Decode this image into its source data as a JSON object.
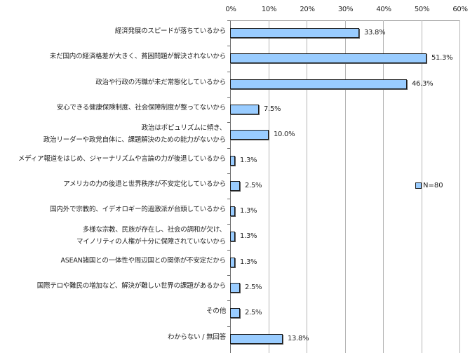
{
  "chart_data": {
    "type": "bar",
    "orientation": "horizontal",
    "title": "",
    "xlabel": "",
    "ylabel": "",
    "xlim": [
      0,
      60
    ],
    "x_ticks": [
      "0%",
      "10%",
      "20%",
      "30%",
      "40%",
      "50%",
      "60%"
    ],
    "axis_position": "top",
    "grid": true,
    "legend": {
      "position": "right",
      "entries": [
        "N=80"
      ]
    },
    "bar_color": "#99ccff",
    "categories": [
      [
        "経済発展のスピードが落ちているから"
      ],
      [
        "未だ国内の経済格差が大きく、貧困問題が解決されないから"
      ],
      [
        "政治や行政の汚職が未だ常態化しているから"
      ],
      [
        "安心できる健康保険制度、社会保障制度が整ってないから"
      ],
      [
        "政治はポピュリズムに傾き、",
        "政治リーダーや政党自体に、課題解決のための能力がないから"
      ],
      [
        "メディア報道をはじめ、ジャーナリズムや言論の力が後退しているから"
      ],
      [
        "アメリカの力の後退と世界秩序が不安定化しているから"
      ],
      [
        "国内外で宗教的、イデオロギー的過激派が台頭しているから"
      ],
      [
        "多様な宗教、民族が存在し、社会の調和が欠け、",
        "マイノリティの人権が十分に保障されていないから"
      ],
      [
        "ASEAN諸国との一体性や周辺国との関係が不安定だから"
      ],
      [
        "国際テロや難民の増加など、解決が難しい世界の課題があるから"
      ],
      [
        "その他"
      ],
      [
        "わからない / 無回答"
      ]
    ],
    "series": [
      {
        "name": "N=80",
        "values": [
          33.8,
          51.3,
          46.3,
          7.5,
          10.0,
          1.3,
          2.5,
          1.3,
          1.3,
          1.3,
          2.5,
          2.5,
          13.8
        ]
      }
    ],
    "value_labels": [
      "33.8%",
      "51.3%",
      "46.3%",
      "7.5%",
      "10.0%",
      "1.3%",
      "2.5%",
      "1.3%",
      "1.3%",
      "1.3%",
      "2.5%",
      "2.5%",
      "13.8%"
    ]
  }
}
